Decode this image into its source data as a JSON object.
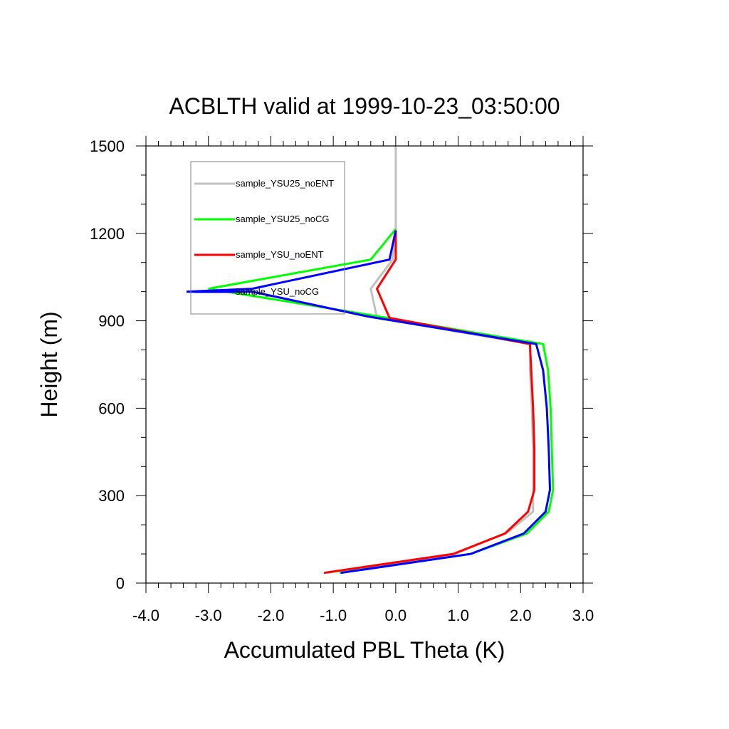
{
  "chart_data": {
    "type": "line",
    "title": "ACBLTH valid at 1999-10-23_03:50:00",
    "xlabel": "Accumulated PBL Theta (K)",
    "ylabel": "Height (m)",
    "xlim": [
      -4.0,
      3.0
    ],
    "ylim": [
      0,
      1500
    ],
    "xticks": [
      -4.0,
      -3.0,
      -2.0,
      -1.0,
      0.0,
      1.0,
      2.0,
      3.0
    ],
    "xtick_labels": [
      "-4.0",
      "-3.0",
      "-2.0",
      "-1.0",
      "0.0",
      "1.0",
      "2.0",
      "3.0"
    ],
    "yticks": [
      0,
      300,
      600,
      900,
      1200,
      1500
    ],
    "ytick_labels": [
      "0",
      "300",
      "600",
      "900",
      "1200",
      "1500"
    ],
    "grid": false,
    "legend_position": "top-left",
    "series": [
      {
        "name": "sample_YSU25_noENT",
        "color": "#c0c0c0",
        "x": [
          -1.1,
          0.95,
          1.8,
          2.2,
          2.2,
          2.2,
          2.18,
          2.15,
          2.15,
          -0.3,
          -0.4,
          -0.05,
          0.0,
          0.0,
          0.0,
          0.0
        ],
        "y": [
          35,
          100,
          175,
          245,
          320,
          460,
          600,
          730,
          820,
          910,
          1010,
          1110,
          1210,
          1300,
          1400,
          1500
        ]
      },
      {
        "name": "sample_YSU25_noCG",
        "color": "#00ff00",
        "x": [
          -0.9,
          1.2,
          2.1,
          2.45,
          2.52,
          2.5,
          2.48,
          2.44,
          2.36,
          -0.7,
          -3.0,
          -0.4,
          0.0
        ],
        "y": [
          35,
          100,
          170,
          245,
          320,
          460,
          600,
          730,
          820,
          930,
          1010,
          1110,
          1215
        ]
      },
      {
        "name": "sample_YSU_noENT",
        "color": "#ff0000",
        "x": [
          -1.15,
          0.92,
          1.75,
          2.12,
          2.22,
          2.22,
          2.2,
          2.17,
          2.15,
          -0.1,
          -0.3,
          0.0,
          0.0
        ],
        "y": [
          35,
          100,
          170,
          245,
          320,
          460,
          600,
          730,
          820,
          910,
          1010,
          1110,
          1210
        ]
      },
      {
        "name": "sample_YSU_noCG",
        "color": "#0000ff",
        "x": [
          -0.88,
          1.2,
          2.05,
          2.4,
          2.47,
          2.45,
          2.42,
          2.36,
          2.25,
          -0.45,
          -2.3,
          -3.35,
          -2.3,
          -0.1,
          0.0
        ],
        "y": [
          35,
          100,
          170,
          245,
          320,
          460,
          600,
          730,
          820,
          915,
          1000,
          1000,
          1010,
          1110,
          1210
        ]
      }
    ]
  }
}
